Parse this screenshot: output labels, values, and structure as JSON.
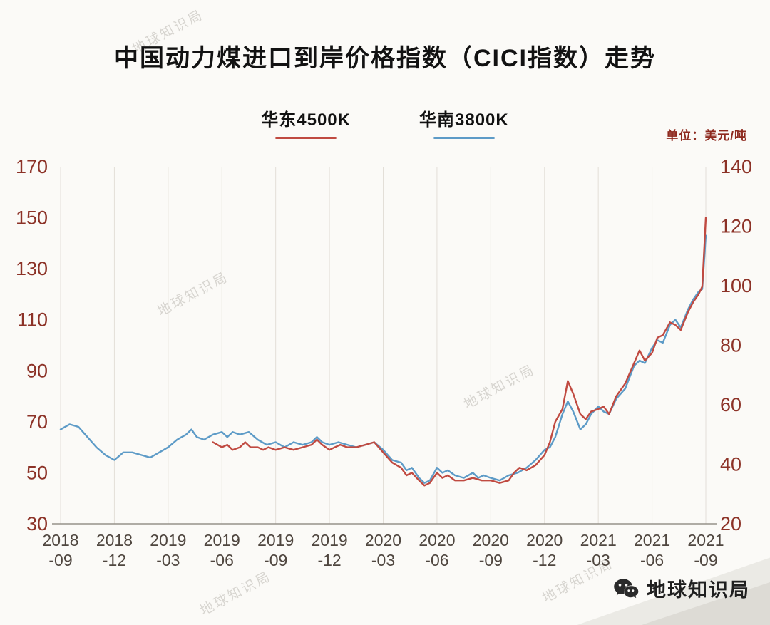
{
  "watermark": "地球知识局",
  "brand": {
    "name": "地球知识局"
  },
  "chart_data": {
    "type": "line",
    "title": "中国动力煤进口到岸价格指数（CICI指数）走势",
    "unit_label": "单位：美元/吨",
    "legend_position": "top",
    "grid": "vertical-only",
    "x_months_span": 36,
    "x_tick_labels": [
      [
        "2018",
        "-09"
      ],
      [
        "2018",
        "-12"
      ],
      [
        "2019",
        "-03"
      ],
      [
        "2019",
        "-06"
      ],
      [
        "2019",
        "-09"
      ],
      [
        "2019",
        "-12"
      ],
      [
        "2020",
        "-03"
      ],
      [
        "2020",
        "-06"
      ],
      [
        "2020",
        "-09"
      ],
      [
        "2020",
        "-12"
      ],
      [
        "2021",
        "-03"
      ],
      [
        "2021",
        "-06"
      ],
      [
        "2021",
        "-09"
      ]
    ],
    "left_axis": {
      "range": [
        30,
        170
      ],
      "ticks": [
        170,
        150,
        130,
        110,
        90,
        70,
        50,
        30
      ]
    },
    "right_axis": {
      "range": [
        20,
        140
      ],
      "ticks": [
        140,
        120,
        100,
        80,
        60,
        40,
        20
      ]
    },
    "series": [
      {
        "name": "华东4500K",
        "color": "#c04a41",
        "axis": "left",
        "points": [
          [
            8.5,
            62
          ],
          [
            9,
            60
          ],
          [
            9.3,
            61
          ],
          [
            9.6,
            59
          ],
          [
            10,
            60
          ],
          [
            10.3,
            62
          ],
          [
            10.6,
            60
          ],
          [
            11,
            60
          ],
          [
            11.3,
            59
          ],
          [
            11.6,
            60
          ],
          [
            12,
            59
          ],
          [
            12.5,
            60
          ],
          [
            13,
            59
          ],
          [
            13.5,
            60
          ],
          [
            14,
            61
          ],
          [
            14.3,
            63
          ],
          [
            14.6,
            61
          ],
          [
            15,
            59
          ],
          [
            15.3,
            60
          ],
          [
            15.6,
            61
          ],
          [
            16,
            60
          ],
          [
            16.5,
            60
          ],
          [
            17,
            61
          ],
          [
            17.5,
            62
          ],
          [
            18,
            58
          ],
          [
            18.5,
            54
          ],
          [
            19,
            52
          ],
          [
            19.3,
            49
          ],
          [
            19.6,
            50
          ],
          [
            20,
            47
          ],
          [
            20.3,
            45
          ],
          [
            20.6,
            46
          ],
          [
            21,
            50
          ],
          [
            21.3,
            48
          ],
          [
            21.6,
            49
          ],
          [
            22,
            47
          ],
          [
            22.5,
            47
          ],
          [
            23,
            48
          ],
          [
            23.5,
            47
          ],
          [
            24,
            47
          ],
          [
            24.5,
            46
          ],
          [
            25,
            47
          ],
          [
            25.3,
            50
          ],
          [
            25.6,
            52
          ],
          [
            26,
            51
          ],
          [
            26.5,
            53
          ],
          [
            27,
            57
          ],
          [
            27.3,
            62
          ],
          [
            27.6,
            70
          ],
          [
            28,
            75
          ],
          [
            28.3,
            86
          ],
          [
            28.6,
            81
          ],
          [
            29,
            73
          ],
          [
            29.3,
            71
          ],
          [
            29.6,
            74
          ],
          [
            30,
            75
          ],
          [
            30.3,
            76
          ],
          [
            30.6,
            73
          ],
          [
            31,
            80
          ],
          [
            31.5,
            85
          ],
          [
            32,
            93
          ],
          [
            32.3,
            98
          ],
          [
            32.6,
            94
          ],
          [
            33,
            97
          ],
          [
            33.3,
            103
          ],
          [
            33.6,
            104
          ],
          [
            34,
            109
          ],
          [
            34.3,
            108
          ],
          [
            34.6,
            106
          ],
          [
            35,
            113
          ],
          [
            35.3,
            117
          ],
          [
            35.6,
            120
          ],
          [
            35.8,
            123
          ],
          [
            36,
            150
          ]
        ]
      },
      {
        "name": "华南3800K",
        "color": "#5d9bc7",
        "axis": "left",
        "points": [
          [
            0,
            67
          ],
          [
            0.5,
            69
          ],
          [
            1,
            68
          ],
          [
            1.5,
            64
          ],
          [
            2,
            60
          ],
          [
            2.5,
            57
          ],
          [
            3,
            55
          ],
          [
            3.5,
            58
          ],
          [
            4,
            58
          ],
          [
            4.5,
            57
          ],
          [
            5,
            56
          ],
          [
            5.5,
            58
          ],
          [
            6,
            60
          ],
          [
            6.5,
            63
          ],
          [
            7,
            65
          ],
          [
            7.3,
            67
          ],
          [
            7.6,
            64
          ],
          [
            8,
            63
          ],
          [
            8.5,
            65
          ],
          [
            9,
            66
          ],
          [
            9.3,
            64
          ],
          [
            9.6,
            66
          ],
          [
            10,
            65
          ],
          [
            10.5,
            66
          ],
          [
            11,
            63
          ],
          [
            11.5,
            61
          ],
          [
            12,
            62
          ],
          [
            12.5,
            60
          ],
          [
            13,
            62
          ],
          [
            13.5,
            61
          ],
          [
            14,
            62
          ],
          [
            14.3,
            64
          ],
          [
            14.6,
            62
          ],
          [
            15,
            61
          ],
          [
            15.5,
            62
          ],
          [
            16,
            61
          ],
          [
            16.5,
            60
          ],
          [
            17,
            61
          ],
          [
            17.5,
            62
          ],
          [
            18,
            59
          ],
          [
            18.5,
            55
          ],
          [
            19,
            54
          ],
          [
            19.3,
            51
          ],
          [
            19.6,
            52
          ],
          [
            20,
            48
          ],
          [
            20.3,
            46
          ],
          [
            20.6,
            47
          ],
          [
            21,
            52
          ],
          [
            21.3,
            50
          ],
          [
            21.6,
            51
          ],
          [
            22,
            49
          ],
          [
            22.5,
            48
          ],
          [
            23,
            50
          ],
          [
            23.3,
            48
          ],
          [
            23.6,
            49
          ],
          [
            24,
            48
          ],
          [
            24.5,
            47
          ],
          [
            25,
            49
          ],
          [
            25.5,
            50
          ],
          [
            26,
            52
          ],
          [
            26.5,
            55
          ],
          [
            27,
            59
          ],
          [
            27.3,
            60
          ],
          [
            27.6,
            64
          ],
          [
            28,
            73
          ],
          [
            28.3,
            78
          ],
          [
            28.6,
            74
          ],
          [
            29,
            67
          ],
          [
            29.3,
            69
          ],
          [
            29.6,
            73
          ],
          [
            30,
            76
          ],
          [
            30.3,
            74
          ],
          [
            30.6,
            73
          ],
          [
            31,
            79
          ],
          [
            31.5,
            83
          ],
          [
            32,
            92
          ],
          [
            32.3,
            94
          ],
          [
            32.6,
            93
          ],
          [
            33,
            99
          ],
          [
            33.3,
            102
          ],
          [
            33.6,
            101
          ],
          [
            34,
            108
          ],
          [
            34.3,
            110
          ],
          [
            34.6,
            107
          ],
          [
            35,
            114
          ],
          [
            35.3,
            118
          ],
          [
            35.6,
            121
          ],
          [
            35.8,
            122
          ],
          [
            36,
            143
          ]
        ]
      }
    ]
  }
}
